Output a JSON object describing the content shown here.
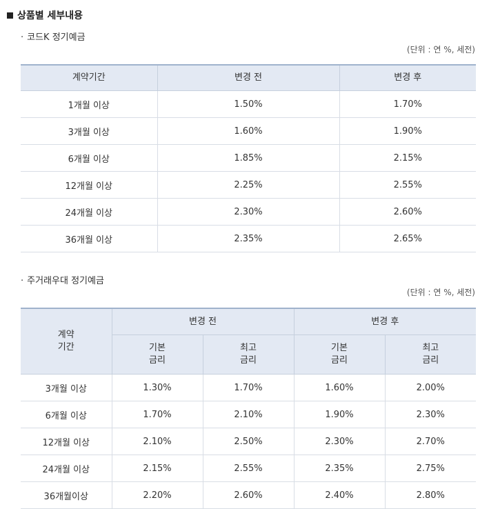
{
  "section": {
    "title": "상품별 세부내용"
  },
  "product1": {
    "title": "코드K 정기예금",
    "unit": "(단위 : 연 %, 세전)",
    "headers": [
      "계약기간",
      "변경 전",
      "변경 후"
    ],
    "rows": [
      [
        "1개월 이상",
        "1.50%",
        "1.70%"
      ],
      [
        "3개월 이상",
        "1.60%",
        "1.90%"
      ],
      [
        "6개월 이상",
        "1.85%",
        "2.15%"
      ],
      [
        "12개월 이상",
        "2.25%",
        "2.55%"
      ],
      [
        "24개월 이상",
        "2.30%",
        "2.60%"
      ],
      [
        "36개월 이상",
        "2.35%",
        "2.65%"
      ]
    ]
  },
  "product2": {
    "title": "주거래우대 정기예금",
    "unit": "(단위 : 연 %, 세전)",
    "header_term_line1": "계약",
    "header_term_line2": "기간",
    "header_before": "변경 전",
    "header_after": "변경 후",
    "sub_basic_line1": "기본",
    "sub_basic_line2": "금리",
    "sub_max_line1": "최고",
    "sub_max_line2": "금리",
    "rows": [
      [
        "3개월 이상",
        "1.30%",
        "1.70%",
        "1.60%",
        "2.00%"
      ],
      [
        "6개월 이상",
        "1.70%",
        "2.10%",
        "1.90%",
        "2.30%"
      ],
      [
        "12개월 이상",
        "2.10%",
        "2.50%",
        "2.30%",
        "2.70%"
      ],
      [
        "24개월 이상",
        "2.15%",
        "2.55%",
        "2.35%",
        "2.75%"
      ],
      [
        "36개월이상",
        "2.20%",
        "2.60%",
        "2.40%",
        "2.80%"
      ]
    ]
  }
}
